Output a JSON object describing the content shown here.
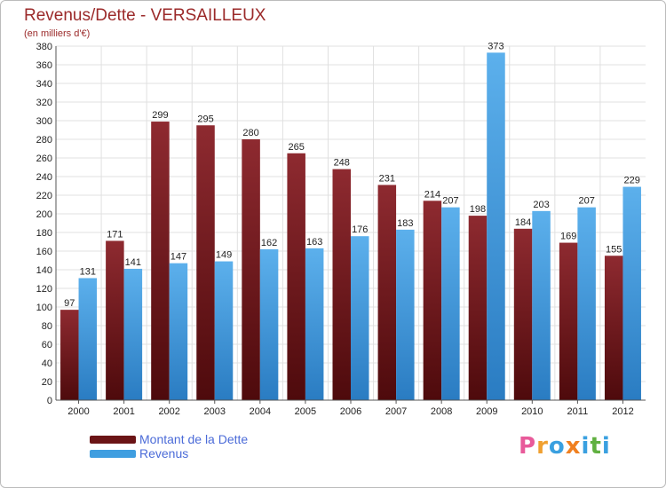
{
  "chart_data": {
    "type": "bar",
    "title": "Revenus/Dette - VERSAILLEUX",
    "subtitle": "(en milliers d'€)",
    "xlabel": "",
    "ylabel": "",
    "ylim": [
      0,
      380
    ],
    "ytick_step": 20,
    "grid": true,
    "legend_position": "bottom-left",
    "categories": [
      "2000",
      "2001",
      "2002",
      "2003",
      "2004",
      "2005",
      "2006",
      "2007",
      "2008",
      "2009",
      "2010",
      "2011",
      "2012"
    ],
    "series": [
      {
        "name": "Montant de la Dette",
        "color": "#7a1a1f",
        "values": [
          97,
          171,
          299,
          295,
          280,
          265,
          248,
          231,
          214,
          198,
          184,
          169,
          155
        ]
      },
      {
        "name": "Revenus",
        "color": "#3f9ee0",
        "values": [
          131,
          141,
          147,
          149,
          162,
          163,
          176,
          183,
          207,
          373,
          203,
          207,
          229
        ]
      }
    ]
  },
  "legend": {
    "items": [
      {
        "label": "Montant de la Dette",
        "color": "#6b1416"
      },
      {
        "label": "Revenus",
        "color": "#3f9ee0"
      }
    ]
  },
  "logo": {
    "letters": [
      "P",
      "r",
      "o",
      "x",
      "i",
      "t",
      "i"
    ],
    "colors": [
      "#e85a9a",
      "#f0a030",
      "#3aa0e0",
      "#f08020",
      "#3aa0e0",
      "#60b040",
      "#3aa0e0"
    ]
  },
  "colors": {
    "title": "#9b2a2a",
    "subtitle": "#9b2a2a",
    "grid": "#e0e0e0",
    "axis": "#555555"
  }
}
